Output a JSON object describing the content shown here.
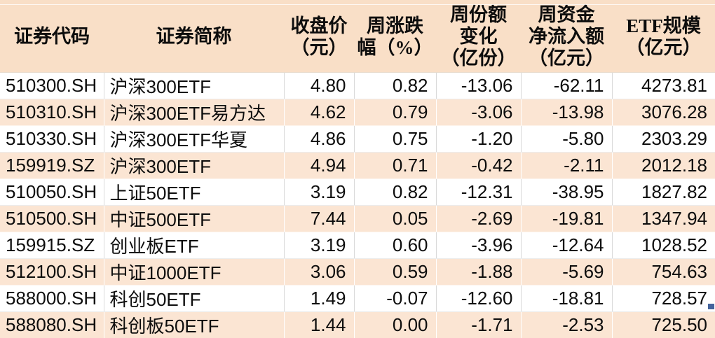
{
  "colors": {
    "header_bg": "#f9dfc7",
    "row_alt_bg": "#fbe5d3",
    "row_bg": "#ffffff",
    "grid_white_row": "#d9d9d9",
    "grid_alt_row": "#ffffff",
    "text": "#0d0d0d",
    "fill_handle": "#44639c"
  },
  "table": {
    "columns": [
      {
        "key": "code",
        "label": "证券代码",
        "align": "left"
      },
      {
        "key": "name",
        "label": "证券简称",
        "align": "left"
      },
      {
        "key": "close_price",
        "label": "收盘价\n（元）",
        "align": "right"
      },
      {
        "key": "weekly_change",
        "label": "周涨跌\n幅（%）",
        "align": "right"
      },
      {
        "key": "share_change",
        "label": "周份额\n变化\n（亿份）",
        "align": "right"
      },
      {
        "key": "net_inflow",
        "label": "周资金\n净流入额\n（亿元）",
        "align": "right"
      },
      {
        "key": "etf_scale",
        "label": "ETF规模\n（亿元）",
        "align": "right"
      }
    ],
    "rows": [
      [
        "510300.SH",
        "沪深300ETF",
        "4.80",
        "0.82",
        "-13.06",
        "-62.11",
        "4273.81"
      ],
      [
        "510310.SH",
        "沪深300ETF易方达",
        "4.62",
        "0.79",
        "-3.06",
        "-13.98",
        "3076.28"
      ],
      [
        "510330.SH",
        "沪深300ETF华夏",
        "4.86",
        "0.75",
        "-1.20",
        "-5.80",
        "2303.29"
      ],
      [
        "159919.SZ",
        "沪深300ETF",
        "4.94",
        "0.71",
        "-0.42",
        "-2.11",
        "2012.18"
      ],
      [
        "510050.SH",
        "上证50ETF",
        "3.19",
        "0.82",
        "-12.31",
        "-38.95",
        "1827.82"
      ],
      [
        "510500.SH",
        "中证500ETF",
        "7.44",
        "0.05",
        "-2.69",
        "-19.81",
        "1347.94"
      ],
      [
        "159915.SZ",
        "创业板ETF",
        "3.19",
        "0.60",
        "-3.96",
        "-12.64",
        "1028.52"
      ],
      [
        "512100.SH",
        "中证1000ETF",
        "3.06",
        "0.59",
        "-1.88",
        "-5.69",
        "754.63"
      ],
      [
        "588000.SH",
        "科创50ETF",
        "1.49",
        "-0.07",
        "-12.60",
        "-18.81",
        "728.57"
      ],
      [
        "588080.SH",
        "科创板50ETF",
        "1.44",
        "0.00",
        "-1.71",
        "-2.53",
        "725.50"
      ]
    ]
  }
}
